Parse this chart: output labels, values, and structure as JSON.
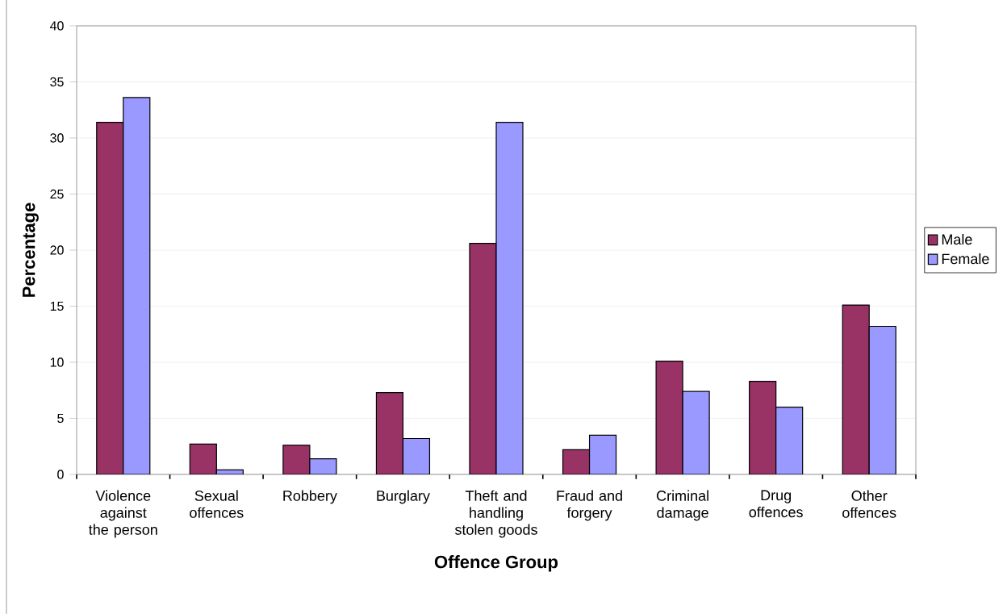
{
  "chart_data": {
    "type": "bar",
    "xlabel": "Offence Group",
    "ylabel": "Percentage",
    "categories": [
      "Violence against the person",
      "Sexual offences",
      "Robbery",
      "Burglary",
      "Theft and handling stolen goods",
      "Fraud and forgery",
      "Criminal damage",
      "Drug offences",
      "Other offences"
    ],
    "series": [
      {
        "name": "Male",
        "color": "#993366",
        "values": [
          31.4,
          2.7,
          2.6,
          7.3,
          20.6,
          2.2,
          10.1,
          8.3,
          15.1
        ]
      },
      {
        "name": "Female",
        "color": "#9999ff",
        "values": [
          33.6,
          0.4,
          1.4,
          3.2,
          31.4,
          3.5,
          7.4,
          6.0,
          13.2
        ]
      }
    ],
    "ylim": [
      0,
      40
    ],
    "yticks": [
      0,
      5,
      10,
      15,
      20,
      25,
      30,
      35,
      40
    ],
    "grid": "y",
    "legend": "right"
  }
}
